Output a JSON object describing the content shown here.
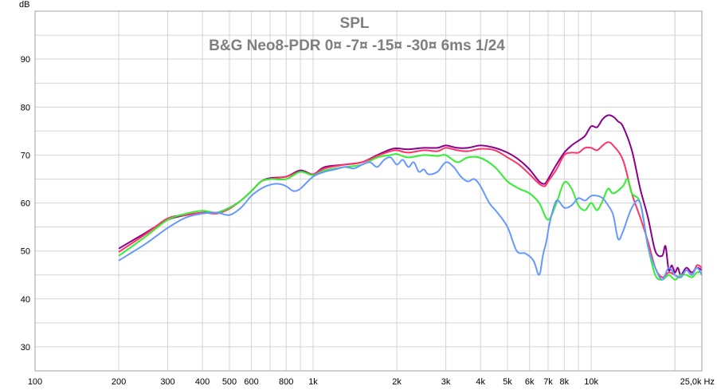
{
  "chart_data": {
    "type": "line",
    "title": "SPL",
    "subtitle": "B&G Neo8-PDR 0¤ -7¤ -15¤ -30¤ 6ms 1/24",
    "xlabel": "Hz",
    "ylabel": "dB",
    "x_scale": "log",
    "xlim": [
      100,
      25000
    ],
    "ylim": [
      25,
      100
    ],
    "x_ticks": [
      {
        "value": 100,
        "label": "100"
      },
      {
        "value": 200,
        "label": "200"
      },
      {
        "value": 300,
        "label": "300"
      },
      {
        "value": 400,
        "label": "400"
      },
      {
        "value": 500,
        "label": "500"
      },
      {
        "value": 600,
        "label": "600"
      },
      {
        "value": 800,
        "label": "800"
      },
      {
        "value": 1000,
        "label": "1k"
      },
      {
        "value": 2000,
        "label": "2k"
      },
      {
        "value": 3000,
        "label": "3k"
      },
      {
        "value": 4000,
        "label": "4k"
      },
      {
        "value": 5000,
        "label": "5k"
      },
      {
        "value": 6000,
        "label": "6k"
      },
      {
        "value": 7000,
        "label": "7k"
      },
      {
        "value": 8000,
        "label": "8k"
      },
      {
        "value": 10000,
        "label": "10k"
      },
      {
        "value": 25000,
        "label": "25,0k Hz"
      }
    ],
    "y_ticks": [
      {
        "value": 30,
        "label": "30"
      },
      {
        "value": 40,
        "label": "40"
      },
      {
        "value": 50,
        "label": "50"
      },
      {
        "value": 60,
        "label": "60"
      },
      {
        "value": 70,
        "label": "70"
      },
      {
        "value": 80,
        "label": "80"
      },
      {
        "value": 90,
        "label": "90"
      }
    ],
    "grid": true,
    "legend": "none",
    "series": [
      {
        "color": "#8b008b",
        "x": [
          200,
          250,
          300,
          350,
          400,
          450,
          500,
          550,
          600,
          650,
          700,
          800,
          900,
          1000,
          1100,
          1300,
          1500,
          1700,
          1900,
          2000,
          2200,
          2500,
          2800,
          3000,
          3300,
          3600,
          4000,
          4500,
          5000,
          5500,
          6000,
          6500,
          6800,
          7000,
          7500,
          8000,
          8500,
          9000,
          9500,
          10000,
          10500,
          11000,
          11500,
          12000,
          12500,
          13000,
          14000,
          15000,
          16000,
          17000,
          18000,
          18500,
          19000,
          19500,
          20000,
          20500,
          21000,
          22000,
          23000,
          24000,
          25000
        ],
        "y": [
          50.5,
          53.8,
          56.5,
          57.5,
          58,
          58,
          59,
          60.5,
          62.5,
          64.5,
          65.2,
          65.5,
          66.8,
          66,
          67.5,
          68,
          68.5,
          70,
          71.2,
          71.4,
          71.2,
          71.5,
          71.5,
          72,
          71.5,
          71.5,
          72,
          71.5,
          70.5,
          69,
          67,
          64.5,
          64,
          65,
          68,
          70.5,
          72,
          73,
          74,
          76,
          75.8,
          77.5,
          78.3,
          78,
          77,
          76,
          71,
          63,
          57,
          50,
          49,
          51,
          46,
          47,
          45.5,
          46.5,
          45,
          46.5,
          45.5,
          46.5,
          46
        ]
      },
      {
        "color": "#ff3366",
        "x": [
          200,
          250,
          300,
          350,
          400,
          450,
          500,
          550,
          600,
          650,
          700,
          800,
          900,
          1000,
          1100,
          1300,
          1500,
          1700,
          1900,
          2000,
          2200,
          2500,
          2800,
          3000,
          3300,
          3600,
          4000,
          4500,
          5000,
          5500,
          6000,
          6500,
          6800,
          7000,
          7500,
          8000,
          8500,
          9000,
          9500,
          10000,
          10500,
          11000,
          11500,
          12000,
          13000,
          14000,
          15000,
          16000,
          17000,
          18000,
          19000,
          20000,
          21000,
          22000,
          23000,
          24000,
          25000
        ],
        "y": [
          49.8,
          53.5,
          56.8,
          57.5,
          58,
          57.8,
          58.8,
          60.5,
          62.5,
          64.5,
          65,
          65.5,
          66.5,
          66,
          67.2,
          68,
          68.5,
          69.8,
          70.8,
          71,
          70.5,
          71,
          70.8,
          71.5,
          71,
          70.8,
          71.3,
          71,
          69.5,
          68,
          66,
          64,
          63.5,
          64.5,
          67,
          70,
          70.5,
          70.5,
          71.5,
          71.5,
          71,
          72,
          72.7,
          72,
          69,
          62,
          57,
          52,
          46.5,
          44.5,
          45.5,
          45,
          44.5,
          46,
          45,
          47,
          46.5
        ]
      },
      {
        "color": "#33ee33",
        "x": [
          200,
          250,
          300,
          350,
          400,
          450,
          500,
          550,
          600,
          650,
          700,
          800,
          900,
          1000,
          1100,
          1300,
          1500,
          1700,
          1900,
          2000,
          2200,
          2500,
          2800,
          3000,
          3300,
          3600,
          4000,
          4500,
          5000,
          5500,
          6000,
          6500,
          7000,
          7500,
          8000,
          8500,
          9000,
          9500,
          10000,
          10500,
          11000,
          11500,
          12000,
          13000,
          13500,
          14000,
          15000,
          16000,
          17000,
          18000,
          19000,
          20000,
          21000,
          22000,
          23000,
          24000,
          25000
        ],
        "y": [
          49,
          53,
          56.5,
          57.8,
          58.4,
          58,
          59,
          60.5,
          62.5,
          64.5,
          65,
          65,
          66.5,
          65.8,
          66.8,
          67.5,
          68,
          69.5,
          70,
          70.2,
          69.5,
          70,
          69.8,
          70,
          68.5,
          69.5,
          69.4,
          67.5,
          64.5,
          63,
          62,
          60,
          56.5,
          60,
          64.3,
          63,
          59.5,
          58.5,
          60,
          58.5,
          60.5,
          63,
          62,
          63.5,
          65,
          62,
          60,
          51,
          45,
          44,
          45,
          44,
          45,
          45,
          44.5,
          45.5,
          45.5
        ]
      },
      {
        "color": "#6699ff",
        "x": [
          200,
          250,
          300,
          350,
          400,
          450,
          500,
          550,
          600,
          650,
          700,
          750,
          800,
          850,
          900,
          1000,
          1100,
          1200,
          1300,
          1400,
          1500,
          1600,
          1700,
          1800,
          1900,
          2000,
          2100,
          2200,
          2300,
          2400,
          2500,
          2600,
          2800,
          3000,
          3200,
          3400,
          3600,
          3800,
          4000,
          4300,
          4600,
          5000,
          5400,
          5800,
          6200,
          6500,
          6700,
          6900,
          7100,
          7500,
          8000,
          8500,
          9000,
          9500,
          10000,
          10500,
          11000,
          11500,
          12000,
          12500,
          13000,
          14000,
          15000,
          16000,
          17000,
          18000,
          19000,
          20000,
          21000,
          22000,
          23000,
          24000,
          25000
        ],
        "y": [
          48,
          51.5,
          54.8,
          57,
          57.8,
          58,
          57.5,
          59,
          61.5,
          63,
          63.8,
          64,
          63.5,
          62.5,
          63,
          65.5,
          66.5,
          67,
          67.5,
          67.2,
          68,
          68.5,
          67.5,
          69,
          69.5,
          68,
          69,
          67.5,
          68.5,
          66.5,
          67,
          66,
          66.5,
          68.5,
          67.5,
          65.5,
          64.5,
          65,
          63.5,
          60,
          58,
          55,
          50,
          49.5,
          48,
          45,
          49,
          52,
          56,
          60.5,
          59,
          59.5,
          61,
          60.5,
          61.5,
          61.5,
          61,
          59.5,
          57.5,
          52.5,
          54,
          59,
          60,
          51,
          46.5,
          44,
          46.5,
          45,
          44.5,
          46,
          45,
          46.5,
          45
        ]
      }
    ]
  }
}
